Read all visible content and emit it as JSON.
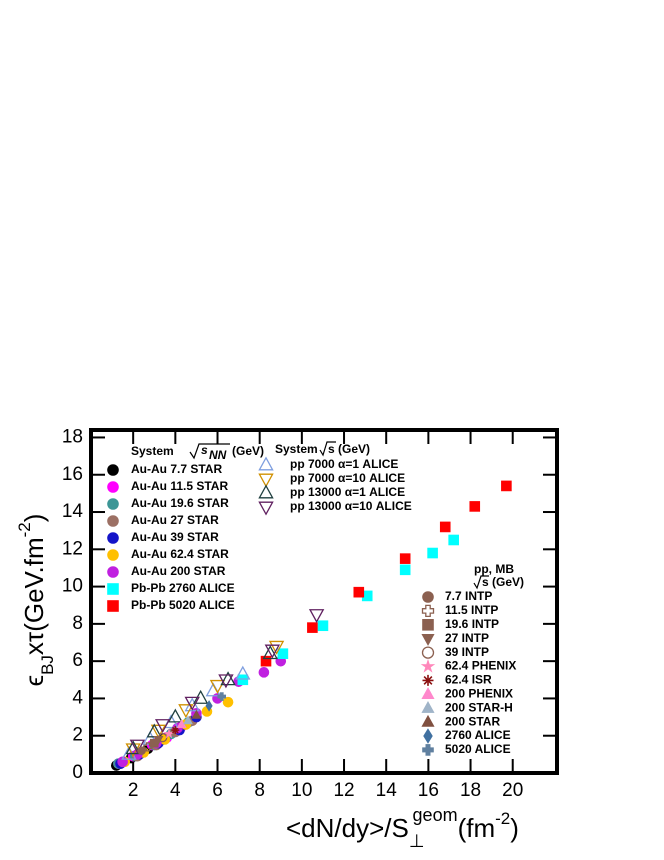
{
  "chart_data": {
    "type": "scatter",
    "y_label": [
      "ϵ",
      "BJ",
      "xτ(GeV.fm",
      "-2",
      ")"
    ],
    "x_label": [
      "<dN/dy>/S",
      "⊥",
      "geom",
      "(fm",
      "-2",
      ")"
    ],
    "xlim": [
      0,
      22.1
    ],
    "ylim": [
      0,
      18.4
    ],
    "xticks": [
      2,
      4,
      6,
      8,
      10,
      12,
      14,
      16,
      18,
      20
    ],
    "yticks": [
      0,
      2,
      4,
      6,
      8,
      10,
      12,
      14,
      16,
      18
    ],
    "legends": [
      {
        "header": [
          "System",
          "s",
          "NN",
          "(GeV)"
        ]
      },
      {
        "header": [
          "System",
          "s (GeV)"
        ]
      },
      {
        "header": [
          "pp, MB",
          "s (GeV)"
        ]
      }
    ],
    "series": [
      {
        "name": "Au-Au 7.7 STAR",
        "legend": 0,
        "color": "#000000",
        "marker": "circle",
        "x": [
          1.2,
          1.9,
          2.7,
          3.4,
          4.1
        ],
        "values": [
          0.4,
          0.8,
          1.3,
          1.8,
          2.3
        ]
      },
      {
        "name": "Au-Au 11.5 STAR",
        "legend": 0,
        "color": "#ff00ff",
        "marker": "circle",
        "x": [
          1.3,
          2.0,
          2.9,
          3.6,
          4.3
        ],
        "values": [
          0.5,
          0.9,
          1.5,
          1.9,
          2.5
        ]
      },
      {
        "name": "Au-Au 19.6 STAR",
        "legend": 0,
        "color": "#3c9696",
        "marker": "circle",
        "x": [
          1.3,
          2.1,
          3.0,
          3.8,
          4.6
        ],
        "values": [
          0.5,
          0.9,
          1.5,
          2.1,
          2.7
        ]
      },
      {
        "name": "Au-Au 27 STAR",
        "legend": 0,
        "color": "#9c7064",
        "marker": "circle",
        "x": [
          1.4,
          2.2,
          3.1,
          4.0,
          4.8
        ],
        "values": [
          0.5,
          0.9,
          1.5,
          2.2,
          2.8
        ]
      },
      {
        "name": "Au-Au 39 STAR",
        "legend": 0,
        "color": "#1414c8",
        "marker": "circle",
        "x": [
          1.4,
          2.3,
          3.2,
          4.2,
          5.0
        ],
        "values": [
          0.5,
          1.0,
          1.6,
          2.3,
          3.0
        ]
      },
      {
        "name": "Au-Au 62.4 STAR",
        "legend": 0,
        "color": "#ffc000",
        "marker": "circle",
        "x": [
          1.6,
          2.5,
          3.5,
          4.5,
          5.5,
          6.5
        ],
        "values": [
          0.6,
          1.1,
          1.8,
          2.6,
          3.3,
          3.8
        ]
      },
      {
        "name": "Au-Au 200 STAR",
        "legend": 0,
        "color": "#c020e0",
        "marker": "circle",
        "x": [
          1.5,
          2.2,
          3.1,
          4.1,
          5.0,
          6.0,
          7.0,
          8.2,
          9.0
        ],
        "values": [
          0.6,
          1.0,
          1.6,
          2.4,
          3.2,
          4.0,
          4.9,
          5.4,
          6.0
        ]
      },
      {
        "name": "Pb-Pb 2760 ALICE",
        "legend": 0,
        "color": "#00ffff",
        "marker": "square",
        "x": [
          7.2,
          9.1,
          11.0,
          13.1,
          14.9,
          16.2,
          17.2
        ],
        "values": [
          5.0,
          6.4,
          7.9,
          9.5,
          10.9,
          11.8,
          12.5
        ]
      },
      {
        "name": "Pb-Pb 5020 ALICE",
        "legend": 0,
        "color": "#ff0000",
        "marker": "square",
        "x": [
          8.3,
          10.5,
          12.7,
          14.9,
          16.8,
          18.2,
          19.7
        ],
        "values": [
          6.0,
          7.8,
          9.7,
          11.5,
          13.2,
          14.3,
          15.4
        ]
      },
      {
        "name": "pp 7000 α=1 ALICE",
        "legend": 1,
        "color": "#7f9fdf",
        "marker": "open-triangle-up",
        "x": [
          1.8,
          2.8,
          3.8,
          4.8,
          5.8,
          7.2
        ],
        "values": [
          1.0,
          1.8,
          2.7,
          3.6,
          4.4,
          5.3
        ]
      },
      {
        "name": "pp 7000 α=10 ALICE",
        "legend": 1,
        "color": "#d09000",
        "marker": "open-triangle-down",
        "x": [
          2.0,
          3.2,
          4.5,
          6.0,
          8.8
        ],
        "values": [
          1.3,
          2.3,
          3.4,
          4.7,
          6.8
        ]
      },
      {
        "name": "pp 13000 α=1 ALICE",
        "legend": 1,
        "color": "#204040",
        "marker": "open-triangle-up",
        "x": [
          2.0,
          3.0,
          4.0,
          5.2,
          6.5,
          8.5
        ],
        "values": [
          1.3,
          2.2,
          3.0,
          4.0,
          5.0,
          6.4
        ]
      },
      {
        "name": "pp 13000 α=10 ALICE",
        "legend": 1,
        "color": "#602060",
        "marker": "open-triangle-down",
        "x": [
          2.2,
          3.4,
          4.8,
          6.4,
          8.6,
          10.7
        ],
        "values": [
          1.5,
          2.6,
          3.8,
          5.0,
          6.6,
          8.5
        ]
      },
      {
        "name": "7.7 INTP",
        "legend": 2,
        "color": "#8b6050",
        "marker": "circle",
        "x": [
          2.4
        ],
        "values": [
          1.2
        ]
      },
      {
        "name": "11.5 INTP",
        "legend": 2,
        "color": "#8b6050",
        "marker": "open-cross",
        "x": [
          2.7
        ],
        "values": [
          1.4
        ]
      },
      {
        "name": "19.6 INTP",
        "legend": 2,
        "color": "#8b6050",
        "marker": "square",
        "x": [
          3.0
        ],
        "values": [
          1.6
        ]
      },
      {
        "name": "27 INTP",
        "legend": 2,
        "color": "#8b6050",
        "marker": "triangle-down",
        "x": [
          3.2
        ],
        "values": [
          1.8
        ]
      },
      {
        "name": "39 INTP",
        "legend": 2,
        "color": "#8b6050",
        "marker": "open-circle",
        "x": [
          3.4
        ],
        "values": [
          1.9
        ]
      },
      {
        "name": "62.4 PHENIX",
        "legend": 2,
        "color": "#ff88bb",
        "marker": "star",
        "x": [
          3.7
        ],
        "values": [
          2.1
        ]
      },
      {
        "name": "62.4 ISR",
        "legend": 2,
        "color": "#8b1010",
        "marker": "asterisk",
        "x": [
          4.0
        ],
        "values": [
          2.3
        ]
      },
      {
        "name": "200 PHENIX",
        "legend": 2,
        "color": "#ff88cc",
        "marker": "triangle-up",
        "x": [
          4.3
        ],
        "values": [
          2.6
        ]
      },
      {
        "name": "200 STAR-H",
        "legend": 2,
        "color": "#a0b4c8",
        "marker": "triangle-up",
        "x": [
          4.6
        ],
        "values": [
          2.8
        ]
      },
      {
        "name": "200 STAR",
        "legend": 2,
        "color": "#805040",
        "marker": "triangle-up",
        "x": [
          5.0
        ],
        "values": [
          3.1
        ]
      },
      {
        "name": "2760 ALICE",
        "legend": 2,
        "color": "#4070a0",
        "marker": "diamond",
        "x": [
          5.6
        ],
        "values": [
          3.6
        ]
      },
      {
        "name": "5020 ALICE",
        "legend": 2,
        "color": "#6080a0",
        "marker": "plus",
        "x": [
          6.2
        ],
        "values": [
          4.1
        ]
      }
    ]
  }
}
